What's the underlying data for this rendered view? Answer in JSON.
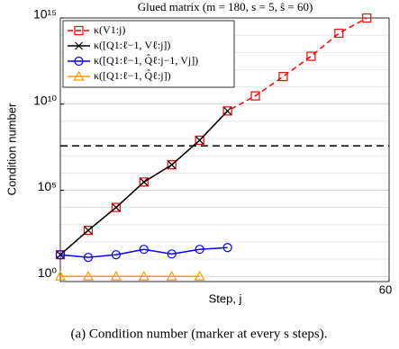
{
  "chart_data": {
    "type": "line",
    "title": "Glued matrix (m = 180, s = 5, ŝ = 60)",
    "x_label": "Step, j",
    "y_label": "Condition number",
    "caption": "(a) Condition number (marker at every s steps).",
    "log_y": true,
    "grid": true,
    "legend": "upper left",
    "xlim": [
      1,
      60
    ],
    "xticks": [
      60
    ],
    "ylim": [
      0.5,
      1000000000000000.0
    ],
    "yticks": [
      {
        "value": 1,
        "label": "10⁰"
      },
      {
        "value": 100000,
        "label": "10⁵"
      },
      {
        "value": 10000000000,
        "label": "10¹⁰"
      },
      {
        "value": 1000000000000000,
        "label": "10¹⁵"
      }
    ],
    "hline": {
      "value": 38000000,
      "color": "#000000"
    },
    "series": [
      {
        "name": "κ(V1:j)",
        "color": "#ff0000",
        "marker": "square",
        "dashed": true,
        "x": [
          1,
          6,
          11,
          16,
          21,
          26,
          31,
          36,
          41,
          46,
          51,
          56
        ],
        "values": [
          18,
          470,
          10000,
          300000,
          3000000,
          80000000,
          4000000000,
          30000000000,
          400000000000,
          6000000000000,
          130000000000000,
          1000000000000000
        ]
      },
      {
        "name": "κ([Q1:ℓ−1, Vℓ:j])",
        "color": "#000000",
        "marker": "x",
        "dashed": false,
        "x": [
          1,
          6,
          11,
          16,
          21,
          26,
          31
        ],
        "values": [
          18,
          470,
          10000,
          300000,
          3000000,
          80000000,
          4000000000
        ]
      },
      {
        "name": "κ([Q1:ℓ−1, Q̂ℓ:j−1, Vj])",
        "color": "#0000ff",
        "marker": "circle",
        "dashed": false,
        "x": [
          1,
          6,
          11,
          16,
          21,
          26,
          31
        ],
        "values": [
          18,
          12.6,
          18,
          37,
          20,
          37,
          47
        ]
      },
      {
        "name": "κ([Q1:ℓ−1, Q̂ℓ:j])",
        "color": "#ff9900",
        "marker": "triangle",
        "dashed": false,
        "x": [
          1,
          6,
          11,
          16,
          21,
          26
        ],
        "values": [
          1,
          1,
          1,
          1,
          1,
          1
        ]
      }
    ]
  }
}
